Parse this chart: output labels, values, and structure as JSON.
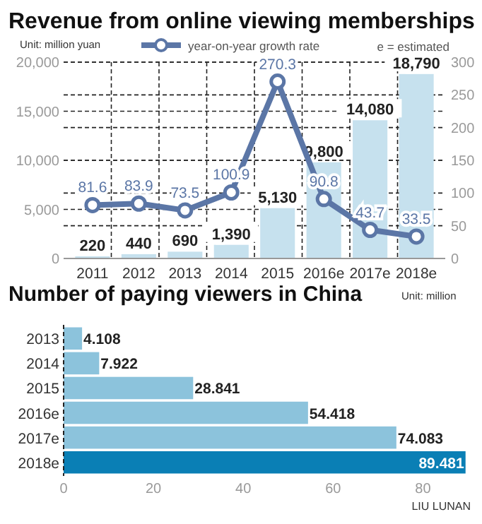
{
  "chart_data": [
    {
      "type": "bar",
      "title": "Revenue from online viewing memberships",
      "annotations": [
        "Unit: million yuan",
        "e = estimated"
      ],
      "categories": [
        "2011",
        "2012",
        "2013",
        "2014",
        "2015",
        "2016e",
        "2017e",
        "2018e"
      ],
      "series": [
        {
          "color": "#c6e1ee",
          "values": [
            220,
            440,
            690,
            1390,
            5130,
            9800,
            14080,
            18790
          ],
          "value_labels": [
            "220",
            "440",
            "690",
            "1,390",
            "5,130",
            "9,800",
            "14,080",
            "18,790"
          ]
        },
        {
          "type": "line",
          "name": "year-on-year growth rate",
          "axis": "y2",
          "color": "#5b76a6",
          "values": [
            81.6,
            83.9,
            73.5,
            100.9,
            270.3,
            90.8,
            43.7,
            33.5
          ]
        }
      ],
      "ylim": [
        0,
        20000
      ],
      "yticks": [
        {
          "value": 0,
          "label": "0"
        },
        {
          "value": 5000,
          "label": "5,000"
        },
        {
          "value": 10000,
          "label": "10,000"
        },
        {
          "value": 15000,
          "label": "15,000"
        },
        {
          "value": 20000,
          "label": "20,000"
        }
      ],
      "y2lim": [
        0,
        300
      ],
      "y2ticks": [
        0,
        50,
        100,
        150,
        200,
        250,
        300
      ],
      "grid": true,
      "legend": "top",
      "marker": "circle",
      "data_labels": true
    },
    {
      "type": "bar",
      "orientation": "horizontal",
      "title": "Number of paying viewers in China",
      "annotations": [
        "Unit: million",
        "LIU LUNAN"
      ],
      "categories": [
        "2013",
        "2014",
        "2015",
        "2016e",
        "2017e",
        "2018e"
      ],
      "values": [
        4.108,
        7.922,
        28.841,
        54.418,
        74.083,
        89.481
      ],
      "colors": [
        "#8cc3dc",
        "#8cc3dc",
        "#8cc3dc",
        "#8cc3dc",
        "#8cc3dc",
        "#0a7fb5"
      ],
      "xlim": [
        0,
        90
      ],
      "xticks": [
        0,
        20,
        40,
        60,
        80
      ],
      "data_labels": true
    }
  ]
}
